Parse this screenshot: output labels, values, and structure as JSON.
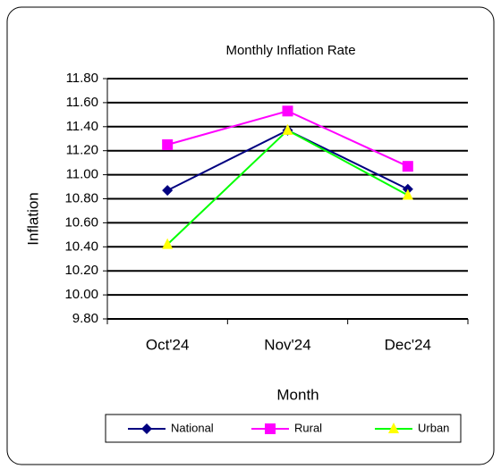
{
  "chart_data": {
    "type": "line",
    "title": "Monthly Inflation Rate",
    "x_label": "Month",
    "y_label": "Inflation",
    "categories": [
      "Oct'24",
      "Nov'24",
      "Dec'24"
    ],
    "series": [
      {
        "name": "National",
        "color": "#000080",
        "marker": "diamond",
        "marker_color": "#000080",
        "values": [
          10.87,
          11.37,
          10.88
        ]
      },
      {
        "name": "Rural",
        "color": "#ff00ff",
        "marker": "square",
        "marker_color": "#ff00ff",
        "values": [
          11.25,
          11.53,
          11.07
        ]
      },
      {
        "name": "Urban",
        "color": "#00ff00",
        "marker": "triangle",
        "marker_color": "#ffff00",
        "values": [
          10.42,
          11.37,
          10.83
        ]
      }
    ],
    "ylim": [
      9.8,
      11.8
    ],
    "yticks": [
      {
        "value": 9.8,
        "label": "9.80"
      },
      {
        "value": 10,
        "label": "10.00"
      },
      {
        "value": 10.2,
        "label": "10.20"
      },
      {
        "value": 10.4,
        "label": "10.40"
      },
      {
        "value": 10.6,
        "label": "10.60"
      },
      {
        "value": 10.8,
        "label": "10.80"
      },
      {
        "value": 11,
        "label": "11.00"
      },
      {
        "value": 11.2,
        "label": "11.20"
      },
      {
        "value": 11.4,
        "label": "11.40"
      },
      {
        "value": 11.6,
        "label": "11.60"
      },
      {
        "value": 11.8,
        "label": "11.80"
      }
    ],
    "grid": true,
    "legend": "bottom"
  }
}
